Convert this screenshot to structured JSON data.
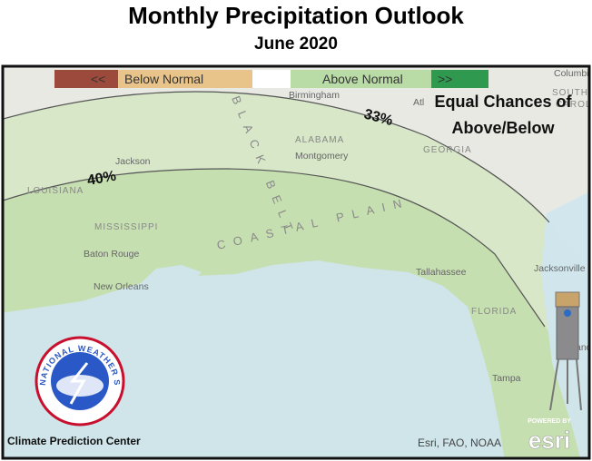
{
  "header": {
    "title": "Monthly Precipitation Outlook",
    "subtitle": "June 2020"
  },
  "legend": {
    "left_arrows": "<<",
    "below": "Below Normal",
    "above": "Above Normal",
    "right_arrows": ">>"
  },
  "annotations": {
    "equal_chances": [
      "Equal Chances of",
      "Above/Below"
    ],
    "contour_33": "33%",
    "contour_40": "40%"
  },
  "places": [
    "Birmingham",
    "Atl",
    "ALABAMA",
    "Montgomery",
    "GEORGIA",
    "Jackson",
    "LOUISIANA",
    "MISSISSIPPI",
    "Baton Rouge",
    "New Orleans",
    "Tallahassee",
    "Jacksonville",
    "FLORIDA",
    "Tampa",
    "Orlando",
    "Columbia",
    "SOUTH",
    "CAROLINA"
  ],
  "regions": [
    "BLACK BELT",
    "COASTAL PLAIN"
  ],
  "logo": {
    "text": "NATIONAL WEATHER SERVICE",
    "caption": "Climate Prediction Center"
  },
  "attribution": {
    "sources": "Esri, FAO, NOAA",
    "powered": "POWERED BY",
    "brand": "esri"
  }
}
